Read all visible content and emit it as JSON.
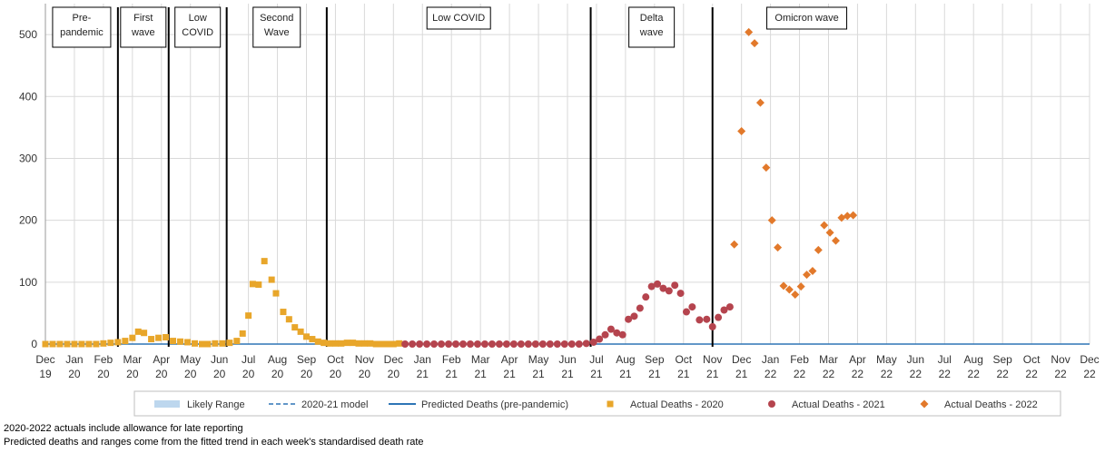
{
  "chart_data": {
    "type": "scatter",
    "title": "",
    "xlabel": "",
    "ylabel": "",
    "ylim": [
      0,
      550
    ],
    "yticks": [
      0,
      100,
      200,
      300,
      400,
      500
    ],
    "grid": true,
    "legend_position": "bottom",
    "colors": {
      "y2020": "#E8A62A",
      "y2021": "#B5444E",
      "y2022": "#E2792B",
      "predicted": "#2E75B6",
      "model": "#2E75B6",
      "range": "#BDD7EE",
      "grid": "#D9D9D9",
      "phase_line": "#000000"
    },
    "x_ticks": [
      [
        "Dec",
        "19"
      ],
      [
        "Jan",
        "20"
      ],
      [
        "Feb",
        "20"
      ],
      [
        "Mar",
        "20"
      ],
      [
        "Apr",
        "20"
      ],
      [
        "May",
        "20"
      ],
      [
        "Jun",
        "20"
      ],
      [
        "Jul",
        "20"
      ],
      [
        "Aug",
        "20"
      ],
      [
        "Sep",
        "20"
      ],
      [
        "Oct",
        "20"
      ],
      [
        "Nov",
        "20"
      ],
      [
        "Dec",
        "20"
      ],
      [
        "Jan",
        "21"
      ],
      [
        "Feb",
        "21"
      ],
      [
        "Mar",
        "21"
      ],
      [
        "Apr",
        "21"
      ],
      [
        "May",
        "21"
      ],
      [
        "Jun",
        "21"
      ],
      [
        "Jul",
        "21"
      ],
      [
        "Aug",
        "21"
      ],
      [
        "Sep",
        "21"
      ],
      [
        "Oct",
        "21"
      ],
      [
        "Nov",
        "21"
      ],
      [
        "Dec",
        "21"
      ],
      [
        "Jan",
        "22"
      ],
      [
        "Feb",
        "22"
      ],
      [
        "Mar",
        "22"
      ],
      [
        "Apr",
        "22"
      ],
      [
        "May",
        "22"
      ],
      [
        "Jun",
        "22"
      ],
      [
        "Jul",
        "22"
      ],
      [
        "Aug",
        "22"
      ],
      [
        "Sep",
        "22"
      ],
      [
        "Oct",
        "22"
      ],
      [
        "Nov",
        "22"
      ],
      [
        "Dec",
        "22"
      ]
    ],
    "phases": [
      {
        "label_lines": [
          "Pre-",
          "pandemic"
        ],
        "start_month": 0.0,
        "end_month": 2.5
      },
      {
        "label_lines": [
          "First",
          "wave"
        ],
        "start_month": 2.5,
        "end_month": 4.25
      },
      {
        "label_lines": [
          "Low",
          "COVID"
        ],
        "start_month": 4.25,
        "end_month": 6.25
      },
      {
        "label_lines": [
          "Second",
          "Wave"
        ],
        "start_month": 6.25,
        "end_month": 9.7
      },
      {
        "label_lines": [
          "Low COVID"
        ],
        "start_month": 9.7,
        "end_month": 18.8
      },
      {
        "label_lines": [
          "Delta",
          "wave"
        ],
        "start_month": 18.8,
        "end_month": 23.0
      },
      {
        "label_lines": [
          "Omicron wave"
        ],
        "start_month": 23.0,
        "end_month": 29.5
      }
    ],
    "phase_boundaries_month": [
      2.5,
      4.25,
      6.25,
      9.7,
      18.8,
      23.0
    ],
    "predicted_deaths": [
      [
        0,
        0
      ],
      [
        36,
        0
      ]
    ],
    "series": [
      {
        "name": "Actual Deaths - 2020",
        "marker": "square",
        "points": [
          [
            0.0,
            0
          ],
          [
            0.25,
            0
          ],
          [
            0.5,
            0
          ],
          [
            0.75,
            0
          ],
          [
            1.0,
            0
          ],
          [
            1.25,
            0
          ],
          [
            1.5,
            0
          ],
          [
            1.75,
            0
          ],
          [
            2.0,
            1
          ],
          [
            2.25,
            2
          ],
          [
            2.5,
            3
          ],
          [
            2.75,
            5
          ],
          [
            3.0,
            10
          ],
          [
            3.2,
            20
          ],
          [
            3.4,
            18
          ],
          [
            3.65,
            8
          ],
          [
            3.9,
            10
          ],
          [
            4.15,
            11
          ],
          [
            4.4,
            5
          ],
          [
            4.65,
            4
          ],
          [
            4.9,
            3
          ],
          [
            5.15,
            1
          ],
          [
            5.4,
            0
          ],
          [
            5.6,
            0
          ],
          [
            5.85,
            1
          ],
          [
            6.1,
            1
          ],
          [
            6.35,
            2
          ],
          [
            6.6,
            5
          ],
          [
            6.8,
            17
          ],
          [
            7.0,
            46
          ],
          [
            7.15,
            97
          ],
          [
            7.35,
            96
          ],
          [
            7.55,
            134
          ],
          [
            7.8,
            104
          ],
          [
            7.95,
            82
          ],
          [
            8.2,
            52
          ],
          [
            8.4,
            40
          ],
          [
            8.6,
            27
          ],
          [
            8.8,
            20
          ],
          [
            9.0,
            12
          ],
          [
            9.2,
            8
          ],
          [
            9.4,
            4
          ],
          [
            9.6,
            2
          ],
          [
            9.8,
            1
          ],
          [
            10.0,
            1
          ],
          [
            10.2,
            1
          ],
          [
            10.4,
            2
          ],
          [
            10.6,
            2
          ],
          [
            10.8,
            1
          ],
          [
            11.0,
            1
          ],
          [
            11.2,
            1
          ],
          [
            11.4,
            0
          ],
          [
            11.6,
            0
          ],
          [
            11.8,
            0
          ],
          [
            12.0,
            0
          ],
          [
            12.2,
            1
          ]
        ]
      },
      {
        "name": "Actual Deaths - 2021",
        "marker": "circle",
        "points": [
          [
            12.4,
            0
          ],
          [
            12.65,
            0
          ],
          [
            12.9,
            0
          ],
          [
            13.15,
            0
          ],
          [
            13.4,
            0
          ],
          [
            13.65,
            0
          ],
          [
            13.9,
            0
          ],
          [
            14.15,
            0
          ],
          [
            14.4,
            0
          ],
          [
            14.65,
            0
          ],
          [
            14.9,
            0
          ],
          [
            15.15,
            0
          ],
          [
            15.4,
            0
          ],
          [
            15.65,
            0
          ],
          [
            15.9,
            0
          ],
          [
            16.15,
            0
          ],
          [
            16.4,
            0
          ],
          [
            16.65,
            0
          ],
          [
            16.9,
            0
          ],
          [
            17.15,
            0
          ],
          [
            17.4,
            0
          ],
          [
            17.65,
            0
          ],
          [
            17.9,
            0
          ],
          [
            18.15,
            0
          ],
          [
            18.4,
            0
          ],
          [
            18.65,
            1
          ],
          [
            18.9,
            3
          ],
          [
            19.1,
            8
          ],
          [
            19.3,
            15
          ],
          [
            19.5,
            24
          ],
          [
            19.7,
            18
          ],
          [
            19.9,
            15
          ],
          [
            20.1,
            40
          ],
          [
            20.3,
            45
          ],
          [
            20.5,
            58
          ],
          [
            20.7,
            76
          ],
          [
            20.9,
            93
          ],
          [
            21.1,
            97
          ],
          [
            21.3,
            90
          ],
          [
            21.5,
            86
          ],
          [
            21.7,
            95
          ],
          [
            21.9,
            82
          ],
          [
            22.1,
            52
          ],
          [
            22.3,
            60
          ],
          [
            22.55,
            39
          ],
          [
            22.8,
            40
          ],
          [
            23.0,
            28
          ],
          [
            23.2,
            43
          ],
          [
            23.4,
            55
          ],
          [
            23.6,
            60
          ]
        ]
      },
      {
        "name": "Actual Deaths - 2022",
        "marker": "diamond",
        "points": [
          [
            23.75,
            161
          ],
          [
            24.0,
            344
          ],
          [
            24.25,
            504
          ],
          [
            24.45,
            486
          ],
          [
            24.65,
            390
          ],
          [
            24.85,
            285
          ],
          [
            25.05,
            200
          ],
          [
            25.25,
            156
          ],
          [
            25.45,
            94
          ],
          [
            25.65,
            88
          ],
          [
            25.85,
            80
          ],
          [
            26.05,
            93
          ],
          [
            26.25,
            112
          ],
          [
            26.45,
            118
          ],
          [
            26.65,
            152
          ],
          [
            26.85,
            192
          ],
          [
            27.05,
            180
          ],
          [
            27.25,
            167
          ],
          [
            27.45,
            204
          ],
          [
            27.65,
            207
          ],
          [
            27.85,
            208
          ]
        ]
      }
    ],
    "legend": [
      {
        "label": "Likely Range",
        "symbol": "band"
      },
      {
        "label": "2020-21 model",
        "symbol": "dash"
      },
      {
        "label": "Predicted Deaths (pre-pandemic)",
        "symbol": "line"
      },
      {
        "label": "Actual Deaths - 2020",
        "symbol": "square"
      },
      {
        "label": "Actual Deaths - 2021",
        "symbol": "circle"
      },
      {
        "label": "Actual Deaths - 2022",
        "symbol": "diamond"
      }
    ]
  },
  "footnotes": {
    "line1": "2020-2022 actuals include allowance for late reporting",
    "line2": "Predicted deaths and ranges come from the fitted trend in each week's standardised death rate"
  }
}
